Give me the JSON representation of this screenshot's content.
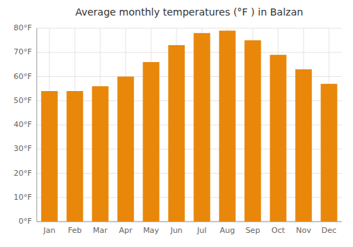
{
  "chart_data": {
    "type": "bar",
    "title": "Average monthly temperatures (°F ) in Balzan",
    "categories": [
      "Jan",
      "Feb",
      "Mar",
      "Apr",
      "May",
      "Jun",
      "Jul",
      "Aug",
      "Sep",
      "Oct",
      "Nov",
      "Dec"
    ],
    "values": [
      54,
      54,
      56,
      60,
      66,
      73,
      78,
      79,
      75,
      69,
      63,
      57
    ],
    "color": "#E8870A",
    "ylim": [
      0,
      80
    ],
    "yticks": [
      {
        "value": 0,
        "label": "0°F"
      },
      {
        "value": 10,
        "label": "10°F"
      },
      {
        "value": 20,
        "label": "20°F"
      },
      {
        "value": 30,
        "label": "30°F"
      },
      {
        "value": 40,
        "label": "40°F"
      },
      {
        "value": 50,
        "label": "50°F"
      },
      {
        "value": 60,
        "label": "60°F"
      },
      {
        "value": 70,
        "label": "70°F"
      },
      {
        "value": 80,
        "label": "80°F"
      }
    ],
    "grid": true
  }
}
